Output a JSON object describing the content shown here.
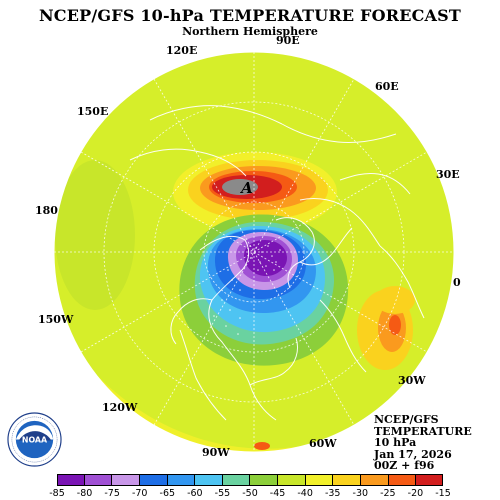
{
  "header": {
    "title": "NCEP/GFS 10-hPa TEMPERATURE FORECAST",
    "subtitle": "Northern Hemisphere"
  },
  "map": {
    "projection": "polar-stereographic",
    "hemisphere": "north",
    "longitude_labels": [
      "90E",
      "60E",
      "30E",
      "0",
      "30W",
      "60W",
      "90W",
      "120W",
      "150W",
      "180",
      "150E",
      "120E"
    ],
    "high_marker": "A",
    "background_color": "#d6ee2a",
    "ocean_land_lines_color": "#ffffff"
  },
  "info": {
    "line1": "NCEP/GFS",
    "line2": "TEMPERATURE",
    "line3": "10 hPa",
    "line4": "Jan 17, 2026",
    "line5": "00Z + f96"
  },
  "logo": {
    "name": "noaa-logo",
    "text": "NOAA"
  },
  "colorbar": {
    "labels": [
      "-85",
      "-80",
      "-75",
      "-70",
      "-65",
      "-60",
      "-55",
      "-50",
      "-45",
      "-40",
      "-35",
      "-30",
      "-25",
      "-20",
      "-15"
    ],
    "colors": [
      "#7a14b4",
      "#a050d4",
      "#c896e8",
      "#1e6ee6",
      "#3296f0",
      "#4ec4f2",
      "#6ad2a0",
      "#8ccf3a",
      "#c8e62a",
      "#f2f02a",
      "#fad21e",
      "#fa9a1e",
      "#f55a14",
      "#d21e1e"
    ]
  }
}
